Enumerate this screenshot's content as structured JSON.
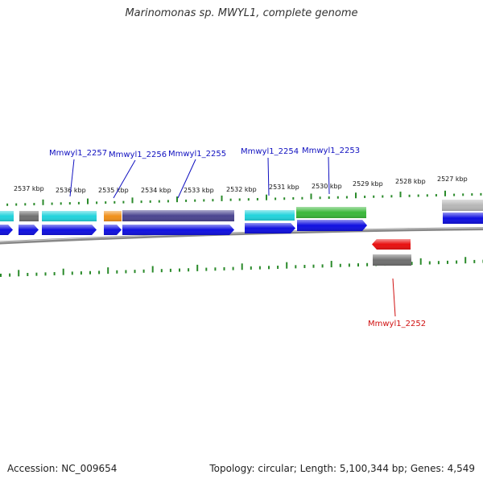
{
  "title": "Marinomonas sp. MWYL1, complete genome",
  "footer": {
    "accession": "Accession: NC_009654",
    "summary": "Topology: circular; Length: 5,100,344 bp; Genes: 4,549"
  },
  "colors": {
    "cyan": "#22d3dc",
    "gray": "#707070",
    "light_gray": "#b8b8b8",
    "orange": "#f0901a",
    "slate": "#4b4590",
    "green": "#3ab83a",
    "blue": "#1010e0",
    "red": "#e81010",
    "tick": "#2a8a2a",
    "label_blue": "#1010c0",
    "label_red": "#d01010"
  },
  "scale_labels": [
    "2537 kbp",
    "2536 kbp",
    "2535 kbp",
    "2534 kbp",
    "2533 kbp",
    "2532 kbp",
    "2531 kbp",
    "2530 kbp",
    "2529 kbp",
    "2528 kbp",
    "2527 kbp"
  ],
  "gene_labels": [
    {
      "text": "Mmwyl1_2257",
      "color": "label_blue"
    },
    {
      "text": "Mmwyl1_2256",
      "color": "label_blue"
    },
    {
      "text": "Mmwyl1_2255",
      "color": "label_blue"
    },
    {
      "text": "Mmwyl1_2254",
      "color": "label_blue"
    },
    {
      "text": "Mmwyl1_2253",
      "color": "label_blue"
    },
    {
      "text": "Mmwyl1_2252",
      "color": "label_red"
    }
  ]
}
